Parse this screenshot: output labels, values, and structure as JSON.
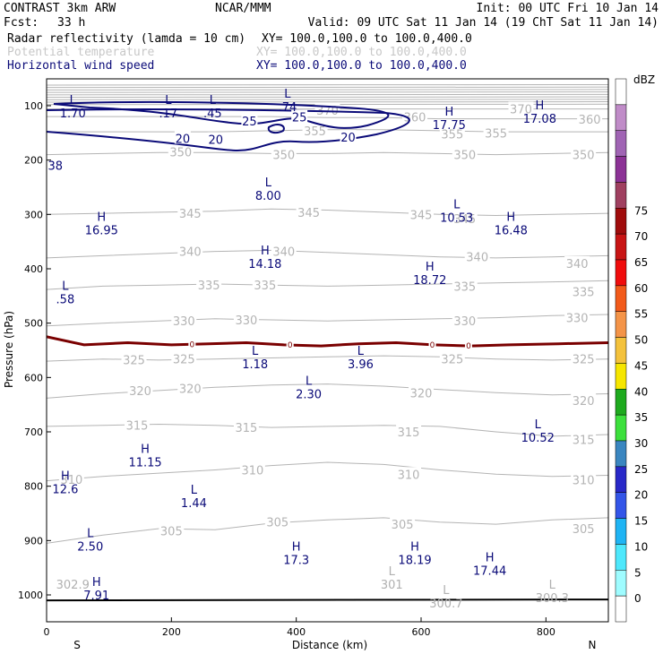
{
  "header": {
    "model": "CONTRAST  3km ARW",
    "center": "NCAR/MMM",
    "init": "Init: 00 UTC Fri 10 Jan 14",
    "fcst_label": "Fcst:",
    "fcst_value": "33 h",
    "valid": "Valid: 09 UTC Sat 11 Jan 14 (19 ChT Sat 11 Jan 14)",
    "fields": [
      {
        "name": "Radar reflectivity (lamda = 10 cm)",
        "xy": "XY= 100.0,100.0 to 100.0,400.0",
        "color": "#000000"
      },
      {
        "name": "Potential temperature",
        "xy": "XY= 100.0,100.0 to 100.0,400.0",
        "color": "#c8c8c8"
      },
      {
        "name": "Horizontal wind speed",
        "xy": "XY= 100.0,100.0 to 100.0,400.0",
        "color": "#0a0a78"
      }
    ]
  },
  "chart_data": {
    "type": "cross-section",
    "title": "Radar reflectivity, potential temperature and horizontal wind speed cross-section",
    "xlabel": "Distance (km)",
    "ylabel": "Pressure (hPa)",
    "xlim": [
      0,
      900
    ],
    "ylim": [
      1045,
      60
    ],
    "xticks": [
      0,
      200,
      400,
      600,
      800
    ],
    "yticks": [
      100,
      200,
      300,
      400,
      500,
      600,
      700,
      800,
      900,
      1000
    ],
    "endpoints": {
      "left": "S",
      "right": "N"
    },
    "colorbar": {
      "unit": "dBZ",
      "levels": [
        0,
        5,
        10,
        15,
        20,
        25,
        30,
        35,
        40,
        45,
        50,
        55,
        60,
        65,
        70,
        75
      ],
      "colors": [
        "#ffffff",
        "#9ffcff",
        "#4ee8fc",
        "#1fb4f4",
        "#3355e8",
        "#2828c8",
        "#3a86c0",
        "#3ce03c",
        "#1eaa1e",
        "#f6e600",
        "#f4c23c",
        "#f49448",
        "#f25a1a",
        "#f00c0c",
        "#c81414",
        "#a00c0c",
        "#a04060",
        "#8c3296",
        "#a064b4",
        "#c08cc8",
        "#ffffff"
      ]
    },
    "theta_contours": [
      {
        "value": 305,
        "p": [
          905,
          890,
          878,
          880,
          868,
          862,
          858,
          866,
          870,
          862,
          858
        ],
        "labels": [
          {
            "x": 200,
            "p": 882
          },
          {
            "x": 370,
            "p": 866
          },
          {
            "x": 570,
            "p": 870
          },
          {
            "x": 860,
            "p": 878
          }
        ]
      },
      {
        "value": 310,
        "p": [
          790,
          782,
          776,
          770,
          762,
          756,
          760,
          770,
          778,
          782,
          780
        ],
        "labels": [
          {
            "x": 40,
            "p": 787
          },
          {
            "x": 330,
            "p": 770
          },
          {
            "x": 580,
            "p": 778
          },
          {
            "x": 860,
            "p": 788
          }
        ]
      },
      {
        "value": 315,
        "p": [
          690,
          688,
          686,
          688,
          692,
          690,
          688,
          690,
          700,
          708,
          705
        ],
        "labels": [
          {
            "x": 145,
            "p": 688
          },
          {
            "x": 320,
            "p": 692
          },
          {
            "x": 580,
            "p": 700
          },
          {
            "x": 860,
            "p": 714
          }
        ]
      },
      {
        "value": 320,
        "p": [
          638,
          630,
          624,
          618,
          614,
          612,
          616,
          622,
          628,
          632,
          630
        ],
        "labels": [
          {
            "x": 150,
            "p": 624
          },
          {
            "x": 230,
            "p": 620
          },
          {
            "x": 600,
            "p": 628
          },
          {
            "x": 860,
            "p": 642
          }
        ]
      },
      {
        "value": 325,
        "p": [
          570,
          566,
          568,
          566,
          564,
          562,
          560,
          562,
          566,
          568,
          566
        ],
        "labels": [
          {
            "x": 140,
            "p": 567
          },
          {
            "x": 220,
            "p": 566
          },
          {
            "x": 650,
            "p": 566
          },
          {
            "x": 860,
            "p": 566
          }
        ]
      },
      {
        "value": 330,
        "p": [
          505,
          500,
          496,
          492,
          494,
          496,
          494,
          492,
          490,
          486,
          484
        ],
        "labels": [
          {
            "x": 220,
            "p": 496
          },
          {
            "x": 320,
            "p": 494
          },
          {
            "x": 670,
            "p": 496
          },
          {
            "x": 850,
            "p": 490
          }
        ]
      },
      {
        "value": 335,
        "p": [
          438,
          432,
          430,
          428,
          430,
          432,
          430,
          428,
          426,
          424,
          422
        ],
        "labels": [
          {
            "x": 260,
            "p": 430
          },
          {
            "x": 350,
            "p": 430
          },
          {
            "x": 670,
            "p": 432
          },
          {
            "x": 860,
            "p": 442
          }
        ]
      },
      {
        "value": 340,
        "p": [
          380,
          376,
          372,
          368,
          366,
          370,
          374,
          378,
          380,
          378,
          376
        ],
        "labels": [
          {
            "x": 230,
            "p": 368
          },
          {
            "x": 380,
            "p": 368
          },
          {
            "x": 690,
            "p": 378
          },
          {
            "x": 850,
            "p": 390
          }
        ]
      },
      {
        "value": 345,
        "p": [
          300,
          298,
          296,
          294,
          290,
          292,
          296,
          300,
          302,
          300,
          298
        ],
        "labels": [
          {
            "x": 230,
            "p": 298
          },
          {
            "x": 420,
            "p": 296
          },
          {
            "x": 600,
            "p": 300
          },
          {
            "x": 670,
            "p": 308
          }
        ]
      },
      {
        "value": 350,
        "p": [
          190,
          188,
          186,
          186,
          188,
          188,
          186,
          188,
          190,
          188,
          186
        ],
        "labels": [
          {
            "x": 215,
            "p": 185
          },
          {
            "x": 380,
            "p": 190
          },
          {
            "x": 670,
            "p": 190
          },
          {
            "x": 860,
            "p": 190
          }
        ]
      },
      {
        "value": 355,
        "p": [
          148,
          148,
          148,
          148,
          146,
          144,
          144,
          146,
          148,
          148,
          148
        ],
        "labels": [
          {
            "x": 430,
            "p": 146
          },
          {
            "x": 650,
            "p": 152
          },
          {
            "x": 720,
            "p": 150
          }
        ]
      },
      {
        "value": 360,
        "p": [
          120,
          120,
          120,
          120,
          120,
          122,
          122,
          124,
          124,
          124,
          124
        ],
        "labels": [
          {
            "x": 590,
            "p": 121
          },
          {
            "x": 870,
            "p": 125
          }
        ]
      },
      {
        "value": 370,
        "p": [
          106,
          106,
          106,
          106,
          106,
          106,
          106,
          106,
          106,
          106,
          106
        ],
        "labels": [
          {
            "x": 450,
            "p": 108
          },
          {
            "x": 760,
            "p": 106
          }
        ]
      }
    ],
    "theta_x": [
      0,
      90,
      180,
      270,
      360,
      450,
      540,
      630,
      720,
      810,
      900
    ],
    "wind_contours": [
      {
        "value": 20,
        "labels": [
          {
            "x": 218,
            "p": 160
          },
          {
            "x": 271,
            "p": 162
          },
          {
            "x": 483,
            "p": 158
          }
        ]
      },
      {
        "value": 25,
        "labels": [
          {
            "x": 325,
            "p": 128
          },
          {
            "x": 405,
            "p": 121
          }
        ]
      }
    ],
    "freezing_level": {
      "value": 0,
      "p": [
        525,
        540,
        536,
        540,
        538,
        536,
        540,
        542,
        538,
        536,
        540,
        542,
        540,
        538,
        536
      ],
      "x": [
        0,
        60,
        130,
        200,
        260,
        320,
        380,
        440,
        500,
        560,
        620,
        680,
        740,
        820,
        900
      ],
      "labels": [
        {
          "x": 233
        },
        {
          "x": 390
        },
        {
          "x": 618
        },
        {
          "x": 676
        }
      ]
    },
    "surface_pressure": 1010,
    "extrema": [
      {
        "kind": "L",
        "value": "1.70",
        "x": 42,
        "p": 103,
        "color": "#0a0a78"
      },
      {
        "kind": "L",
        "value": ".17",
        "x": 195,
        "p": 103,
        "color": "#0a0a78"
      },
      {
        "kind": "L",
        "value": ".45",
        "x": 266,
        "p": 103,
        "color": "#0a0a78"
      },
      {
        "kind": "L",
        "value": ".74",
        "x": 386,
        "p": 92,
        "color": "#0a0a78"
      },
      {
        "kind": "H",
        "value": "17.75",
        "x": 645,
        "p": 125,
        "color": "#0a0a78"
      },
      {
        "kind": "H",
        "value": "17.08",
        "x": 790,
        "p": 113,
        "color": "#0a0a78"
      },
      {
        "kind": "",
        "value": "38",
        "x": 14,
        "p": 200,
        "color": "#0a0a78"
      },
      {
        "kind": "L",
        "value": "8.00",
        "x": 355,
        "p": 255,
        "color": "#0a0a78"
      },
      {
        "kind": "H",
        "value": "16.95",
        "x": 88,
        "p": 318,
        "color": "#0a0a78"
      },
      {
        "kind": "L",
        "value": "10.53",
        "x": 657,
        "p": 295,
        "color": "#0a0a78"
      },
      {
        "kind": "H",
        "value": "16.48",
        "x": 744,
        "p": 318,
        "color": "#0a0a78"
      },
      {
        "kind": "H",
        "value": "14.18",
        "x": 350,
        "p": 380,
        "color": "#0a0a78"
      },
      {
        "kind": "H",
        "value": "18.72",
        "x": 614,
        "p": 410,
        "color": "#0a0a78"
      },
      {
        "kind": "L",
        "value": ".58",
        "x": 30,
        "p": 445,
        "color": "#0a0a78"
      },
      {
        "kind": "L",
        "value": "1.18",
        "x": 334,
        "p": 565,
        "color": "#0a0a78"
      },
      {
        "kind": "L",
        "value": "3.96",
        "x": 503,
        "p": 565,
        "color": "#0a0a78"
      },
      {
        "kind": "L",
        "value": "2.30",
        "x": 420,
        "p": 620,
        "color": "#0a0a78"
      },
      {
        "kind": "L",
        "value": "10.52",
        "x": 787,
        "p": 700,
        "color": "#0a0a78"
      },
      {
        "kind": "H",
        "value": "11.15",
        "x": 158,
        "p": 745,
        "color": "#0a0a78"
      },
      {
        "kind": "H",
        "value": "12.6",
        "x": 30,
        "p": 795,
        "color": "#0a0a78"
      },
      {
        "kind": "L",
        "value": "1.44",
        "x": 236,
        "p": 820,
        "color": "#0a0a78"
      },
      {
        "kind": "L",
        "value": "2.50",
        "x": 70,
        "p": 900,
        "color": "#0a0a78"
      },
      {
        "kind": "H",
        "value": "17.3",
        "x": 400,
        "p": 925,
        "color": "#0a0a78"
      },
      {
        "kind": "H",
        "value": "18.19",
        "x": 590,
        "p": 925,
        "color": "#0a0a78"
      },
      {
        "kind": "H",
        "value": "17.44",
        "x": 710,
        "p": 945,
        "color": "#0a0a78"
      },
      {
        "kind": "",
        "value": "302.9",
        "x": 42,
        "p": 970,
        "color": "#b0b0b0"
      },
      {
        "kind": "H",
        "value": "7.91",
        "x": 80,
        "p": 990,
        "color": "#0a0a78"
      },
      {
        "kind": "L",
        "value": "301",
        "x": 553,
        "p": 970,
        "color": "#b0b0b0"
      },
      {
        "kind": "L",
        "value": "300.7",
        "x": 640,
        "p": 1005,
        "color": "#b0b0b0"
      },
      {
        "kind": "L",
        "value": "300.3",
        "x": 810,
        "p": 995,
        "color": "#b0b0b0"
      }
    ]
  }
}
